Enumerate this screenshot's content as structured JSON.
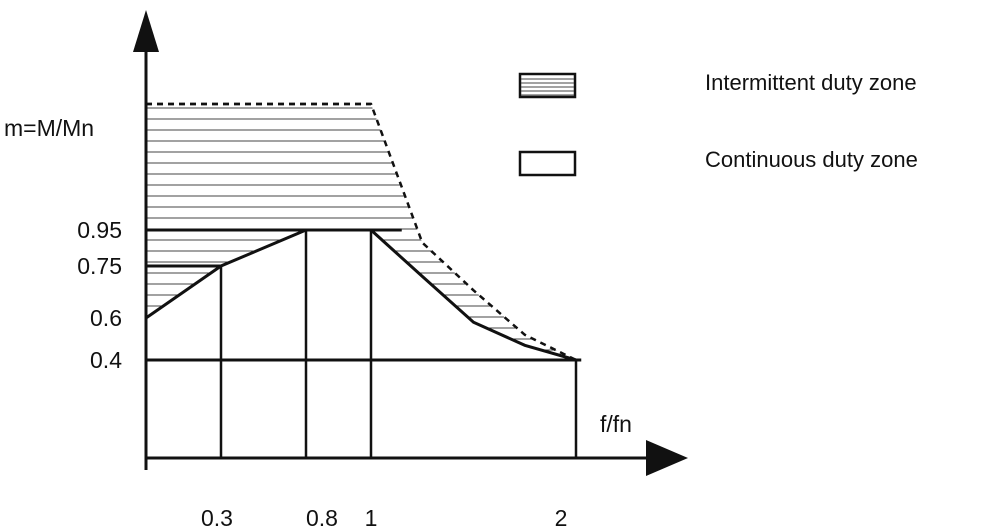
{
  "chart_data": {
    "type": "line",
    "title": "",
    "ylabel": "m=M/Mn",
    "xlabel": "f/fn",
    "x_ticks": [
      {
        "value": 0.3,
        "label": "0.3"
      },
      {
        "value": 0.8,
        "label": "0.8"
      },
      {
        "value": 1,
        "label": "1"
      },
      {
        "value": 2,
        "label": "2"
      }
    ],
    "y_ticks": [
      {
        "value": 0.4,
        "label": "0.4"
      },
      {
        "value": 0.6,
        "label": "0.6"
      },
      {
        "value": 0.75,
        "label": "0.75"
      },
      {
        "value": 0.95,
        "label": "0.95"
      }
    ],
    "series": [
      {
        "name": "Continuous duty zone",
        "style": "solid",
        "x": [
          0,
          0.3,
          0.8,
          1,
          1.25,
          1.5,
          1.75,
          2
        ],
        "y": [
          0.6,
          0.75,
          0.95,
          0.95,
          0.72,
          0.58,
          0.47,
          0.4
        ]
      },
      {
        "name": "Intermittent duty zone",
        "style": "dashed",
        "x": [
          0,
          1,
          1.25,
          1.5,
          1.75,
          2
        ],
        "y": [
          1.15,
          1.15,
          0.88,
          0.68,
          0.52,
          0.4
        ]
      }
    ],
    "xlim": [
      0,
      2.4
    ],
    "ylim": [
      0,
      1.4
    ],
    "grid": false,
    "legend": {
      "placement": "top-right",
      "entries": [
        {
          "label": "Intermittent duty zone",
          "pattern": "hatched"
        },
        {
          "label": "Continuous duty zone",
          "pattern": "empty"
        }
      ]
    }
  }
}
